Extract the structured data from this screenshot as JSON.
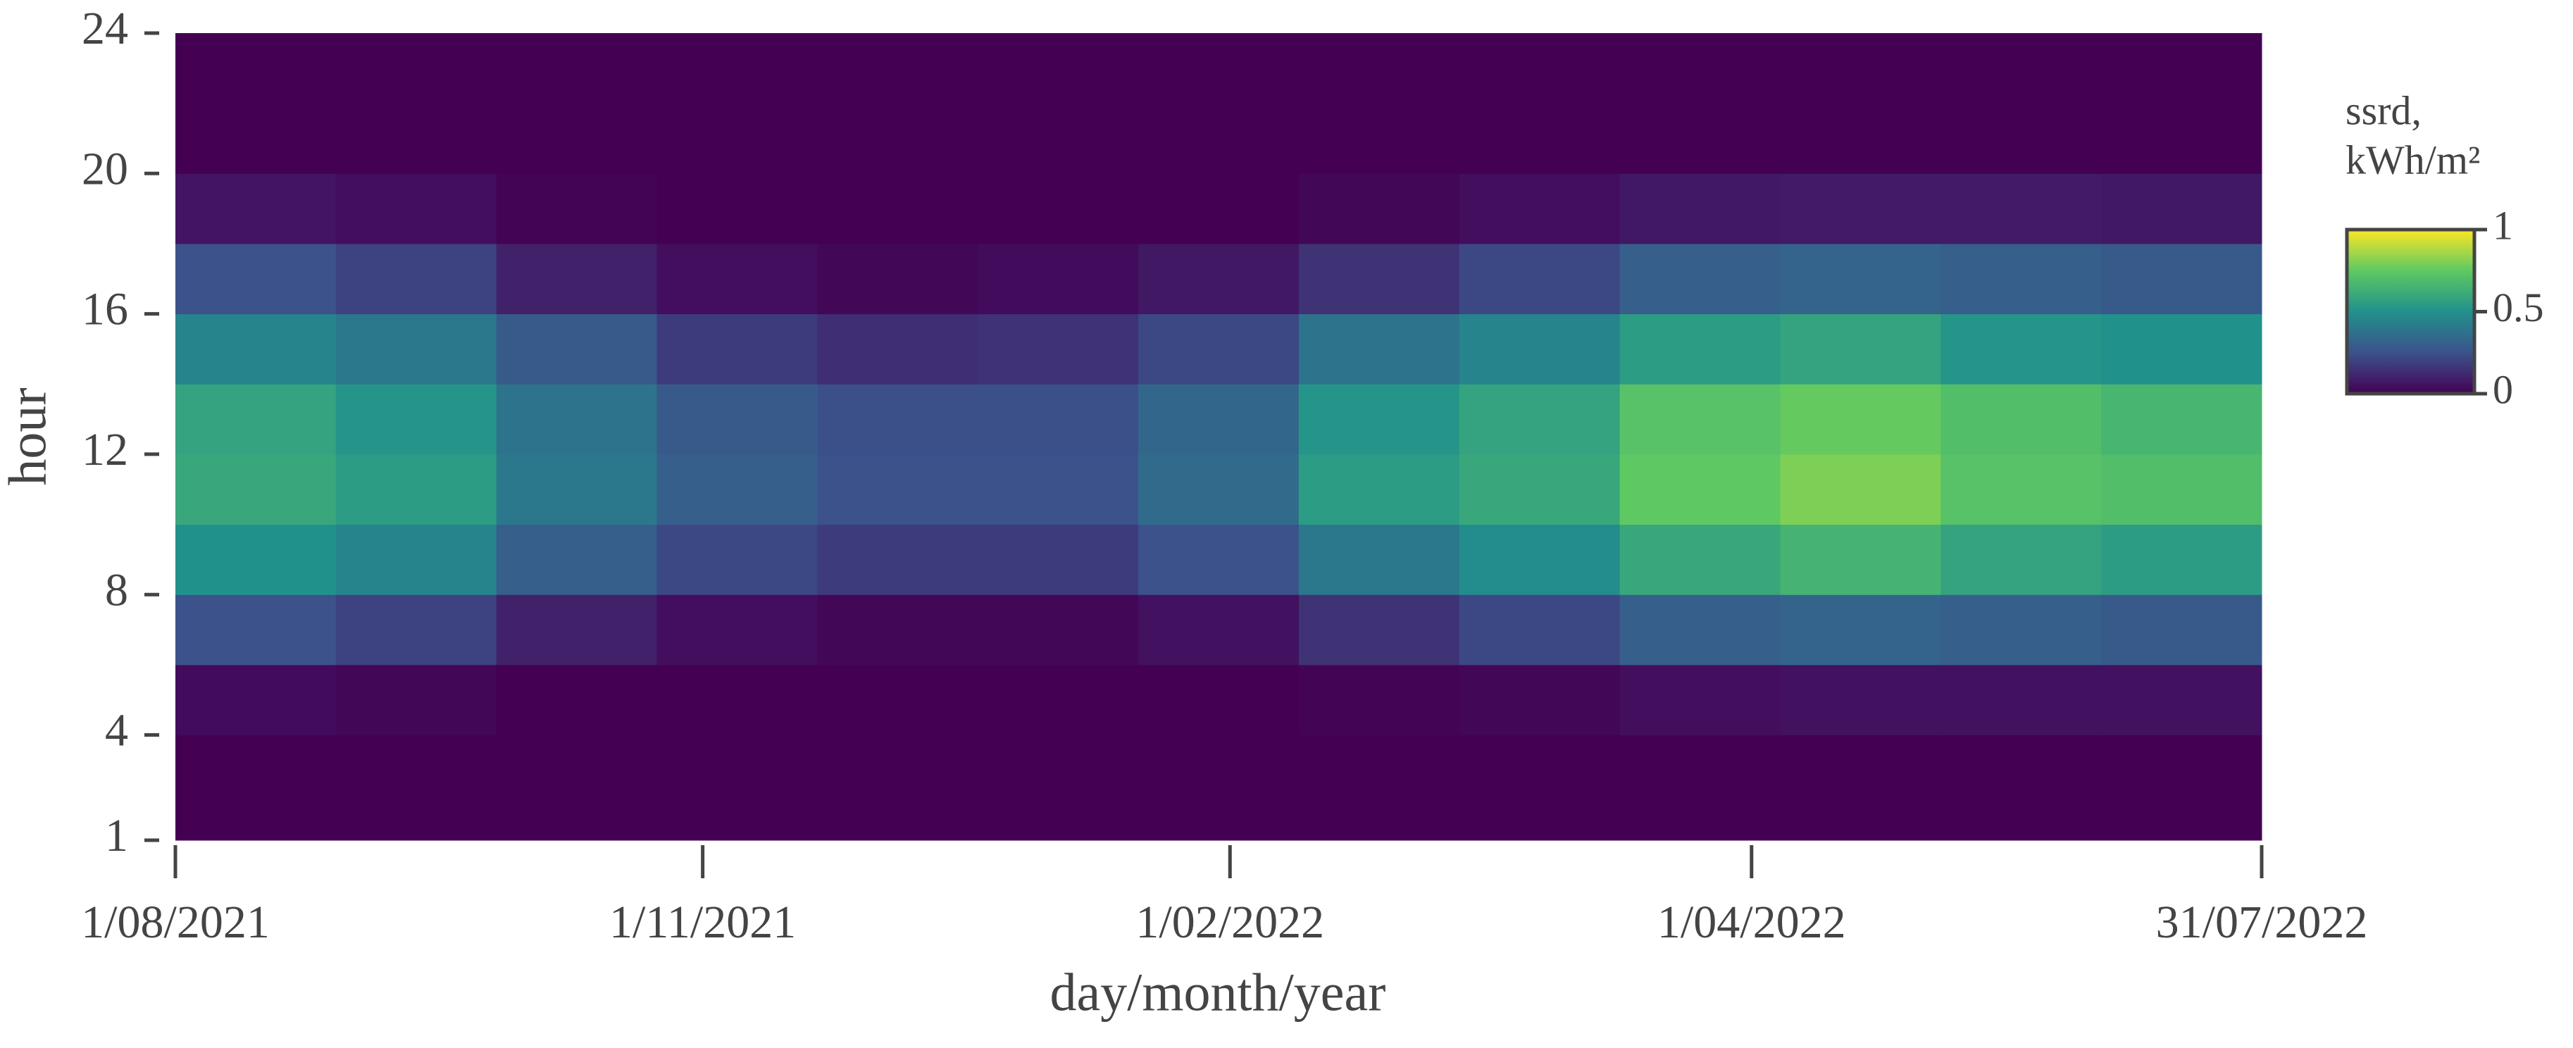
{
  "chart_data": {
    "type": "heatmap",
    "xlabel": "day/month/year",
    "ylabel": "hour",
    "colorbar_label": [
      "ssrd,",
      "kWh/m²"
    ],
    "xlim": [
      0,
      364
    ],
    "xticks": [
      {
        "value": 0,
        "label": "1/08/2021"
      },
      {
        "value": 92,
        "label": "1/11/2021"
      },
      {
        "value": 184,
        "label": "1/02/2022"
      },
      {
        "value": 275,
        "label": "1/04/2022"
      },
      {
        "value": 364,
        "label": "31/07/2022"
      }
    ],
    "ylim": [
      1,
      24
    ],
    "yticks": [
      1,
      4,
      8,
      12,
      16,
      20,
      24
    ],
    "clim": [
      0,
      1
    ],
    "cticks": [
      0,
      0.5,
      1
    ],
    "colormap": [
      "#440154",
      "#3b528b",
      "#21918c",
      "#5ec962",
      "#fde725"
    ],
    "xbins": [
      0,
      28,
      56,
      84,
      112,
      140,
      168,
      196,
      224,
      252,
      280,
      308,
      336,
      364
    ],
    "ybins": [
      1,
      4,
      6,
      8,
      10,
      12,
      14,
      16,
      18,
      20,
      22,
      24
    ],
    "values": [
      [
        0,
        0.03,
        0.25,
        0.5,
        0.6,
        0.58,
        0.45,
        0.25,
        0.06,
        0,
        0
      ],
      [
        0,
        0.02,
        0.2,
        0.45,
        0.55,
        0.52,
        0.4,
        0.2,
        0.04,
        0,
        0
      ],
      [
        0,
        0,
        0.1,
        0.3,
        0.4,
        0.38,
        0.28,
        0.1,
        0.01,
        0,
        0
      ],
      [
        0,
        0,
        0.04,
        0.22,
        0.3,
        0.28,
        0.18,
        0.04,
        0,
        0,
        0
      ],
      [
        0,
        0,
        0.02,
        0.18,
        0.25,
        0.24,
        0.14,
        0.02,
        0,
        0,
        0
      ],
      [
        0,
        0,
        0.02,
        0.18,
        0.25,
        0.24,
        0.15,
        0.03,
        0,
        0,
        0
      ],
      [
        0,
        0,
        0.05,
        0.25,
        0.35,
        0.33,
        0.22,
        0.07,
        0,
        0,
        0
      ],
      [
        0,
        0.01,
        0.15,
        0.4,
        0.55,
        0.52,
        0.38,
        0.15,
        0.02,
        0,
        0
      ],
      [
        0,
        0.02,
        0.22,
        0.48,
        0.6,
        0.58,
        0.45,
        0.22,
        0.04,
        0,
        0
      ],
      [
        0,
        0.04,
        0.3,
        0.6,
        0.75,
        0.72,
        0.55,
        0.3,
        0.07,
        0,
        0
      ],
      [
        0,
        0.05,
        0.32,
        0.65,
        0.8,
        0.76,
        0.58,
        0.32,
        0.08,
        0,
        0
      ],
      [
        0,
        0.05,
        0.3,
        0.58,
        0.72,
        0.7,
        0.52,
        0.3,
        0.08,
        0,
        0
      ],
      [
        0,
        0.05,
        0.28,
        0.55,
        0.7,
        0.66,
        0.5,
        0.28,
        0.07,
        0,
        0
      ]
    ]
  }
}
